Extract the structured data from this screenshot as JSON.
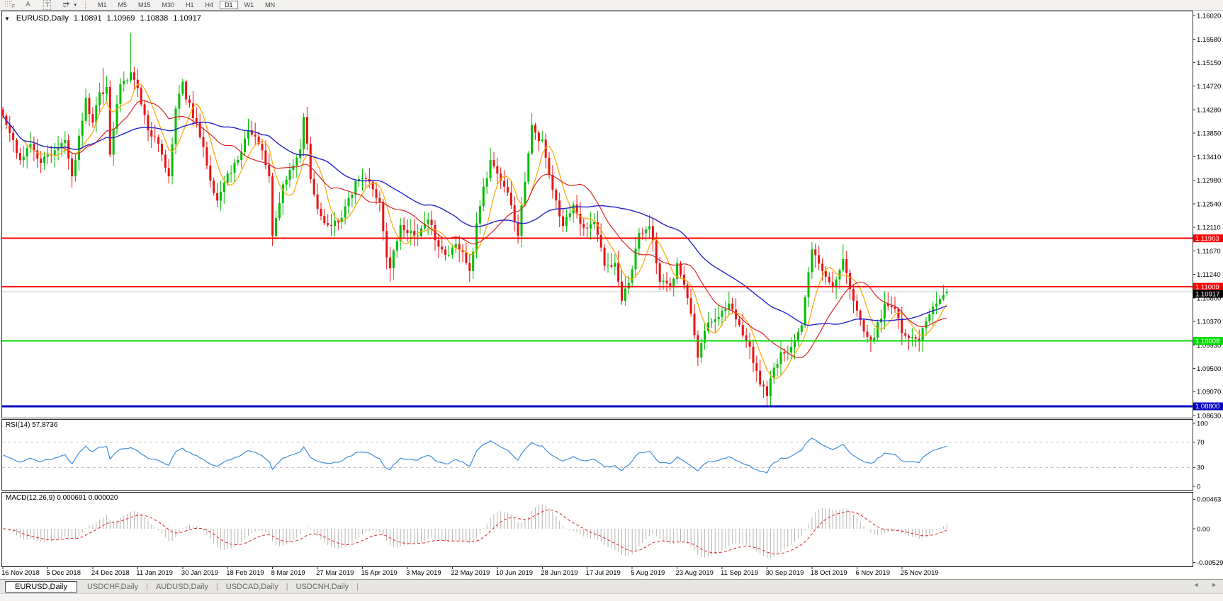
{
  "toolbar": {
    "tools": [
      {
        "name": "chart-grid-f",
        "label": "F"
      },
      {
        "name": "text-label",
        "label": "A"
      },
      {
        "name": "text-box",
        "label": "T"
      },
      {
        "name": "cycle-arrows",
        "label": ""
      }
    ],
    "timeframes": [
      "M1",
      "M5",
      "M15",
      "M30",
      "H1",
      "H4",
      "D1",
      "W1",
      "MN"
    ],
    "active_timeframe": "D1",
    "dropdown_caret": "▾"
  },
  "header": {
    "collapse_icon": "▼",
    "symbol": "EURUSD,Daily",
    "open": "1.10891",
    "high": "1.10969",
    "low": "1.10838",
    "close": "1.10917"
  },
  "tabs": {
    "items": [
      "EURUSD,Daily",
      "USDCHF,Daily",
      "AUDUSD,Daily",
      "USDCAD,Daily",
      "USDCNH,Daily"
    ],
    "active_index": 0,
    "separator": "|",
    "nav_left": "◄",
    "nav_right": "►"
  },
  "chart_data": {
    "type": "candlestick",
    "symbol": "EURUSD",
    "timeframe": "Daily",
    "price_axis_ticks": [
      "1.16020",
      "1.15580",
      "1.15150",
      "1.14720",
      "1.14280",
      "1.13850",
      "1.13410",
      "1.12980",
      "1.12540",
      "1.12110",
      "1.11670",
      "1.11240",
      "1.10800",
      "1.10370",
      "1.09930",
      "1.09500",
      "1.09070",
      "1.08630"
    ],
    "date_axis_labels": [
      "16 Nov 2018",
      "5 Dec 2018",
      "24 Dec 2018",
      "11 Jan 2019",
      "30 Jan 2019",
      "18 Feb 2019",
      "8 Mar 2019",
      "27 Mar 2019",
      "15 Apr 2019",
      "3 May 2019",
      "22 May 2019",
      "10 Jun 2019",
      "28 Jun 2019",
      "17 Jul 2019",
      "5 Aug 2019",
      "23 Aug 2019",
      "11 Sep 2019",
      "30 Sep 2019",
      "18 Oct 2019",
      "6 Nov 2019",
      "25 Nov 2019"
    ],
    "bars_per_label": 13,
    "bar_count": 274,
    "noise_seed": 42,
    "noise_amp": 0.0016,
    "candle_up_color": "#00BE00",
    "candle_down_color": "#E81414",
    "close_anchors": [
      [
        0,
        1.1417
      ],
      [
        2,
        1.1385
      ],
      [
        3,
        1.1372
      ],
      [
        5,
        1.1335
      ],
      [
        8,
        1.1365
      ],
      [
        11,
        1.133
      ],
      [
        13,
        1.1345
      ],
      [
        16,
        1.1357
      ],
      [
        18,
        1.1372
      ],
      [
        20,
        1.1305
      ],
      [
        22,
        1.138
      ],
      [
        24,
        1.145
      ],
      [
        26,
        1.1404
      ],
      [
        28,
        1.146
      ],
      [
        30,
        1.147
      ],
      [
        31,
        1.1345
      ],
      [
        32,
        1.1393
      ],
      [
        34,
        1.1475
      ],
      [
        37,
        1.1497
      ],
      [
        39,
        1.1468
      ],
      [
        42,
        1.139
      ],
      [
        45,
        1.1365
      ],
      [
        48,
        1.1305
      ],
      [
        50,
        1.143
      ],
      [
        52,
        1.148
      ],
      [
        53,
        1.1447
      ],
      [
        56,
        1.1405
      ],
      [
        59,
        1.1325
      ],
      [
        62,
        1.126
      ],
      [
        64,
        1.1293
      ],
      [
        65,
        1.131
      ],
      [
        68,
        1.1335
      ],
      [
        71,
        1.139
      ],
      [
        74,
        1.1365
      ],
      [
        77,
        1.1305
      ],
      [
        78,
        1.1195
      ],
      [
        81,
        1.129
      ],
      [
        84,
        1.1325
      ],
      [
        86,
        1.1355
      ],
      [
        87,
        1.1415
      ],
      [
        89,
        1.13
      ],
      [
        91,
        1.1245
      ],
      [
        94,
        1.1215
      ],
      [
        97,
        1.122
      ],
      [
        100,
        1.1265
      ],
      [
        103,
        1.13
      ],
      [
        106,
        1.1295
      ],
      [
        109,
        1.1258
      ],
      [
        111,
        1.1155
      ],
      [
        112,
        1.1135
      ],
      [
        115,
        1.1215
      ],
      [
        117,
        1.12
      ],
      [
        120,
        1.1195
      ],
      [
        123,
        1.1225
      ],
      [
        126,
        1.1175
      ],
      [
        129,
        1.116
      ],
      [
        131,
        1.118
      ],
      [
        133,
        1.1165
      ],
      [
        135,
        1.113
      ],
      [
        138,
        1.125
      ],
      [
        141,
        1.1335
      ],
      [
        143,
        1.131
      ],
      [
        146,
        1.1275
      ],
      [
        149,
        1.1195
      ],
      [
        151,
        1.1295
      ],
      [
        153,
        1.14
      ],
      [
        155,
        1.137
      ],
      [
        156,
        1.1373
      ],
      [
        159,
        1.128
      ],
      [
        162,
        1.1213
      ],
      [
        165,
        1.1253
      ],
      [
        168,
        1.121
      ],
      [
        171,
        1.122
      ],
      [
        174,
        1.114
      ],
      [
        177,
        1.1145
      ],
      [
        179,
        1.1075
      ],
      [
        181,
        1.1108
      ],
      [
        184,
        1.12
      ],
      [
        187,
        1.1213
      ],
      [
        190,
        1.111
      ],
      [
        193,
        1.11
      ],
      [
        195,
        1.1145
      ],
      [
        198,
        1.108
      ],
      [
        201,
        1.097
      ],
      [
        204,
        1.1035
      ],
      [
        207,
        1.1045
      ],
      [
        210,
        1.107
      ],
      [
        213,
        1.103
      ],
      [
        216,
        1.099
      ],
      [
        219,
        1.092
      ],
      [
        221,
        1.0899
      ],
      [
        222,
        1.0932
      ],
      [
        225,
        1.098
      ],
      [
        228,
        1.099
      ],
      [
        231,
        1.103
      ],
      [
        234,
        1.117
      ],
      [
        237,
        1.113
      ],
      [
        240,
        1.11
      ],
      [
        243,
        1.1152
      ],
      [
        246,
        1.1075
      ],
      [
        249,
        1.1018
      ],
      [
        252,
        1.1007
      ],
      [
        255,
        1.107
      ],
      [
        258,
        1.106
      ],
      [
        260,
        1.1015
      ],
      [
        263,
        1.1008
      ],
      [
        265,
        1.1
      ],
      [
        268,
        1.105
      ],
      [
        271,
        1.1078
      ],
      [
        273,
        1.10917
      ]
    ],
    "bar_overrides": {
      "29": {
        "h": 1.1505
      },
      "37": {
        "h": 1.157
      },
      "78": {
        "l": 1.1176
      },
      "112": {
        "l": 1.111
      },
      "149": {
        "l": 1.1181
      },
      "222": {
        "l": 1.0879
      },
      "243": {
        "h": 1.1179
      },
      "273": {
        "o": 1.10891,
        "h": 1.10969,
        "l": 1.10838,
        "c": 1.10917
      }
    },
    "moving_averages": [
      {
        "name": "ma-fast",
        "period": 7,
        "color": "#FFA500"
      },
      {
        "name": "ma-mid",
        "period": 18,
        "color": "#D92525"
      },
      {
        "name": "ma-slow",
        "period": 45,
        "color": "#2424C8"
      }
    ],
    "hlines": [
      {
        "price": 1.11903,
        "label": "1.11903",
        "color": "#FF0000",
        "width": 2
      },
      {
        "price": 1.11009,
        "label": "1.11009",
        "color": "#FF0000",
        "width": 2
      },
      {
        "price": 1.10008,
        "label": "1.10008",
        "color": "#00DC00",
        "width": 2
      },
      {
        "price": 1.088,
        "label": "1.08800",
        "color": "#0000C0",
        "width": 3
      }
    ],
    "current_price": {
      "value": 1.10917,
      "label": "1.10917",
      "line_color": "#C8C8C8",
      "badge_color": "#000000"
    },
    "rsi": {
      "label": "RSI(14) 57.8736",
      "last_value": 57.8736,
      "period": 14,
      "levels": [
        100,
        70,
        30,
        0
      ],
      "dashed_levels": [
        70,
        30
      ],
      "line_color": "#3E8EDE"
    },
    "macd": {
      "label": "MACD(12,26,9) 0.000691 0.000020",
      "fast": 12,
      "slow": 26,
      "signal": 9,
      "last_main": 0.000691,
      "last_signal": 2e-05,
      "axis_labels": [
        {
          "value": 0.00463,
          "text": "0.00463"
        },
        {
          "value": 0,
          "text": "0.00"
        },
        {
          "value": -0.005295,
          "text": "-0.005295"
        }
      ],
      "bar_color": "#B4B4B4",
      "signal_color": "#E02020"
    }
  }
}
